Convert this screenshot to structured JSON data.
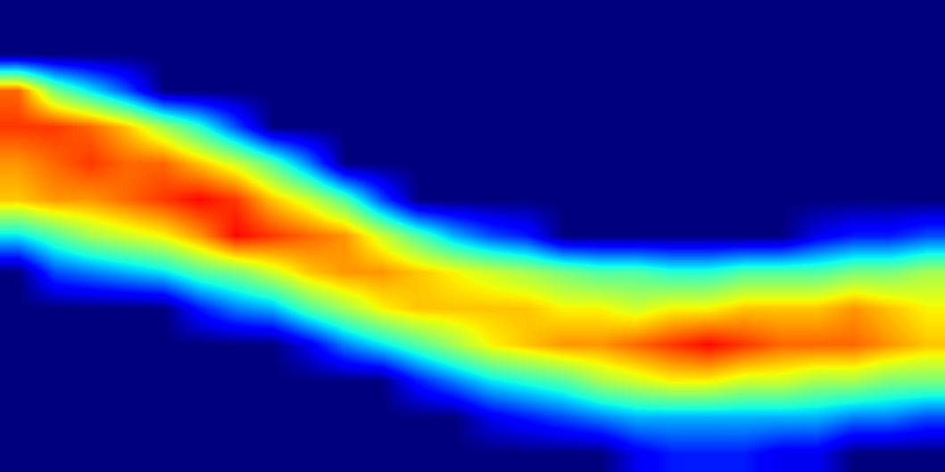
{
  "chart_data": {
    "type": "heatmap",
    "tick_labels": false,
    "clim": [
      0,
      1
    ],
    "cells": [
      [
        0,
        0,
        0,
        0,
        0,
        0,
        0,
        0,
        0,
        0,
        0,
        0,
        0,
        0,
        0,
        0,
        0,
        0,
        0,
        0,
        0,
        0,
        0,
        0,
        0,
        0
      ],
      [
        0,
        0,
        0,
        0,
        0,
        0,
        0,
        0,
        0,
        0,
        0,
        0,
        0,
        0,
        0,
        0,
        0,
        0,
        0,
        0,
        0,
        0,
        0,
        0,
        0,
        0
      ],
      [
        0.8,
        0.5,
        0.35,
        0.2,
        0,
        0,
        0,
        0,
        0,
        0,
        0,
        0,
        0,
        0,
        0,
        0,
        0,
        0,
        0,
        0,
        0,
        0,
        0,
        0,
        0,
        0
      ],
      [
        0.85,
        0.85,
        0.8,
        0.7,
        0.55,
        0.4,
        0.2,
        0,
        0,
        0,
        0,
        0,
        0,
        0,
        0,
        0,
        0,
        0,
        0,
        0,
        0,
        0,
        0,
        0,
        0,
        0
      ],
      [
        0.75,
        0.8,
        0.85,
        0.8,
        0.8,
        0.7,
        0.6,
        0.45,
        0.25,
        0,
        0,
        0,
        0,
        0,
        0,
        0,
        0,
        0,
        0,
        0,
        0,
        0,
        0,
        0,
        0,
        0
      ],
      [
        0.7,
        0.75,
        0.75,
        0.8,
        0.85,
        0.9,
        0.85,
        0.7,
        0.6,
        0.45,
        0.2,
        0,
        0,
        0,
        0,
        0,
        0,
        0,
        0,
        0,
        0,
        0,
        0,
        0,
        0,
        0
      ],
      [
        0.35,
        0.45,
        0.55,
        0.6,
        0.65,
        0.75,
        0.9,
        0.85,
        0.8,
        0.75,
        0.6,
        0.45,
        0.3,
        0.2,
        0.15,
        0,
        0,
        0,
        0,
        0,
        0,
        0,
        0.1,
        0.15,
        0.15,
        0.2
      ],
      [
        0,
        0.2,
        0.25,
        0.3,
        0.35,
        0.45,
        0.5,
        0.6,
        0.7,
        0.75,
        0.75,
        0.7,
        0.65,
        0.6,
        0.55,
        0.5,
        0.45,
        0.45,
        0.4,
        0.4,
        0.45,
        0.45,
        0.45,
        0.5,
        0.5,
        0.55
      ],
      [
        0,
        0,
        0,
        0,
        0,
        0.15,
        0.25,
        0.3,
        0.45,
        0.55,
        0.65,
        0.7,
        0.7,
        0.7,
        0.7,
        0.65,
        0.65,
        0.6,
        0.65,
        0.65,
        0.7,
        0.7,
        0.7,
        0.75,
        0.7,
        0.65
      ],
      [
        0,
        0,
        0,
        0,
        0,
        0,
        0,
        0,
        0.1,
        0.25,
        0.35,
        0.45,
        0.55,
        0.65,
        0.7,
        0.75,
        0.75,
        0.8,
        0.85,
        0.9,
        0.85,
        0.8,
        0.8,
        0.8,
        0.75,
        0.7
      ],
      [
        0,
        0,
        0,
        0,
        0,
        0,
        0,
        0,
        0,
        0,
        0,
        0.15,
        0.25,
        0.35,
        0.4,
        0.45,
        0.55,
        0.6,
        0.65,
        0.65,
        0.6,
        0.6,
        0.55,
        0.55,
        0.5,
        0.5
      ],
      [
        0,
        0,
        0,
        0,
        0,
        0,
        0,
        0,
        0,
        0,
        0,
        0,
        0,
        0.1,
        0.15,
        0.2,
        0.25,
        0.3,
        0.3,
        0.3,
        0.3,
        0.3,
        0.3,
        0.25,
        0.25,
        0.2
      ],
      [
        0,
        0,
        0,
        0,
        0,
        0,
        0,
        0,
        0,
        0,
        0,
        0,
        0,
        0,
        0,
        0,
        0,
        0.1,
        0.15,
        0.15,
        0.15,
        0.1,
        0.1,
        0,
        0,
        0
      ]
    ]
  }
}
